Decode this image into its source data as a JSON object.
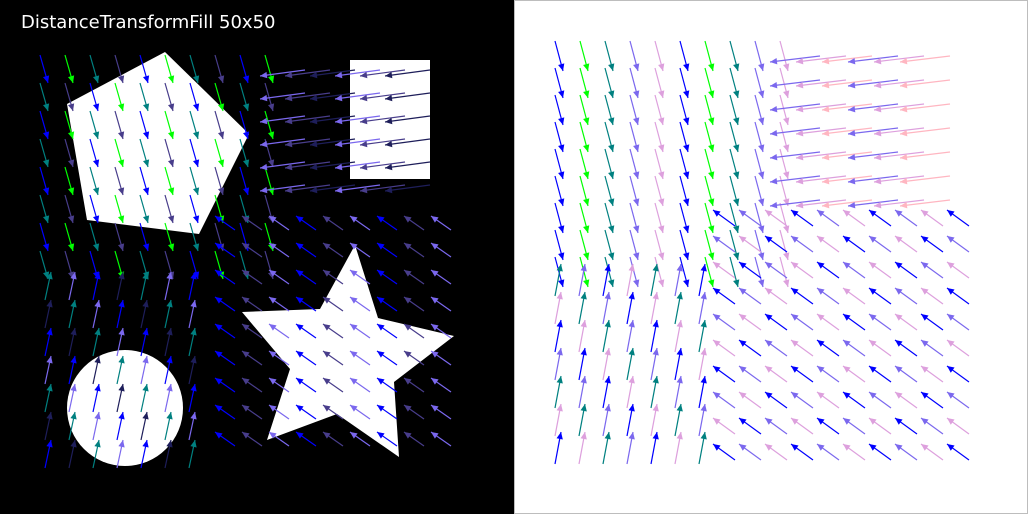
{
  "title": "DistanceTransformFill 50x50",
  "colors": {
    "background_left": "#000000",
    "background_right": "#ffffff",
    "shape_fill": "#ffffff",
    "palette": [
      "#0000ff",
      "#00ff00",
      "#008080",
      "#7b68ee",
      "#dda0dd",
      "#ffb6c1",
      "#483d8b",
      "#1e1e5a"
    ]
  },
  "shapes": [
    "pentagon",
    "rectangle",
    "circle",
    "star"
  ],
  "fields": [
    "gradient-vector-field-left",
    "gradient-vector-field-right"
  ]
}
